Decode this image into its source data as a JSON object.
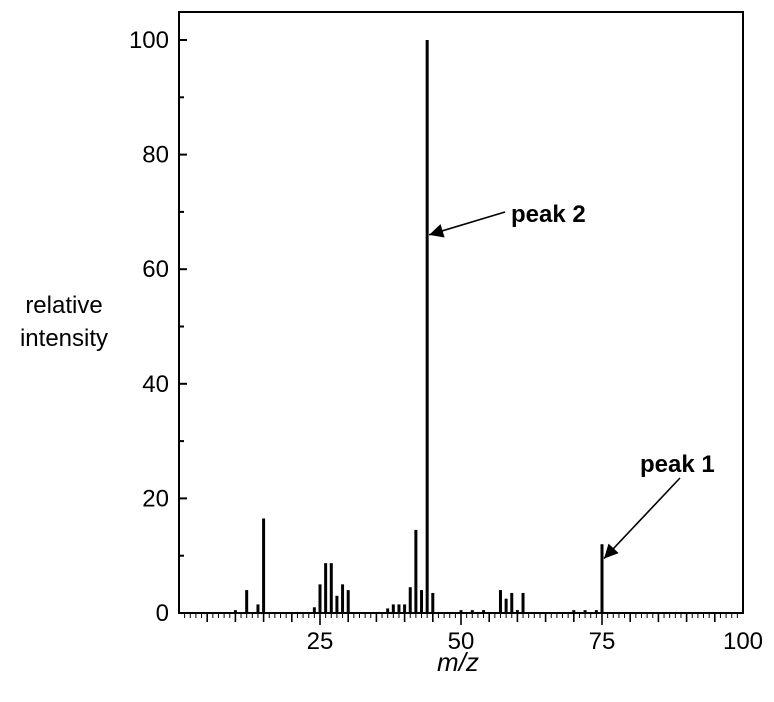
{
  "chart_data": {
    "type": "bar",
    "xlabel": "m/z",
    "ylabel_lines": [
      "relative",
      "intensity"
    ],
    "xlim": [
      0,
      100
    ],
    "ylim": [
      0,
      100
    ],
    "x_ticks": [
      25,
      50,
      75,
      100
    ],
    "y_ticks": [
      0,
      20,
      40,
      60,
      80,
      100
    ],
    "grid": false,
    "peaks": [
      {
        "mz": 10,
        "intensity": 0.5
      },
      {
        "mz": 12,
        "intensity": 4
      },
      {
        "mz": 14,
        "intensity": 1.5
      },
      {
        "mz": 15,
        "intensity": 16.5
      },
      {
        "mz": 24,
        "intensity": 1
      },
      {
        "mz": 25,
        "intensity": 5
      },
      {
        "mz": 26,
        "intensity": 8.7
      },
      {
        "mz": 27,
        "intensity": 8.7
      },
      {
        "mz": 28,
        "intensity": 3
      },
      {
        "mz": 29,
        "intensity": 5
      },
      {
        "mz": 30,
        "intensity": 4
      },
      {
        "mz": 37,
        "intensity": 0.8
      },
      {
        "mz": 38,
        "intensity": 1.5
      },
      {
        "mz": 39,
        "intensity": 1.5
      },
      {
        "mz": 40,
        "intensity": 1.5
      },
      {
        "mz": 41,
        "intensity": 4.5
      },
      {
        "mz": 42,
        "intensity": 14.5
      },
      {
        "mz": 43,
        "intensity": 4
      },
      {
        "mz": 44,
        "intensity": 100
      },
      {
        "mz": 45,
        "intensity": 3.5
      },
      {
        "mz": 50,
        "intensity": 0.5
      },
      {
        "mz": 52,
        "intensity": 0.5
      },
      {
        "mz": 54,
        "intensity": 0.5
      },
      {
        "mz": 57,
        "intensity": 4
      },
      {
        "mz": 58,
        "intensity": 2.5
      },
      {
        "mz": 59,
        "intensity": 3.5
      },
      {
        "mz": 60,
        "intensity": 0.5
      },
      {
        "mz": 61,
        "intensity": 3.5
      },
      {
        "mz": 70,
        "intensity": 0.5
      },
      {
        "mz": 72,
        "intensity": 0.5
      },
      {
        "mz": 74,
        "intensity": 0.5
      },
      {
        "mz": 75,
        "intensity": 12
      }
    ],
    "annotations": [
      {
        "text": "peak 2",
        "target_mz": 44,
        "target_intensity": 66
      },
      {
        "text": "peak 1",
        "target_mz": 75,
        "target_intensity": 9.5
      }
    ]
  }
}
